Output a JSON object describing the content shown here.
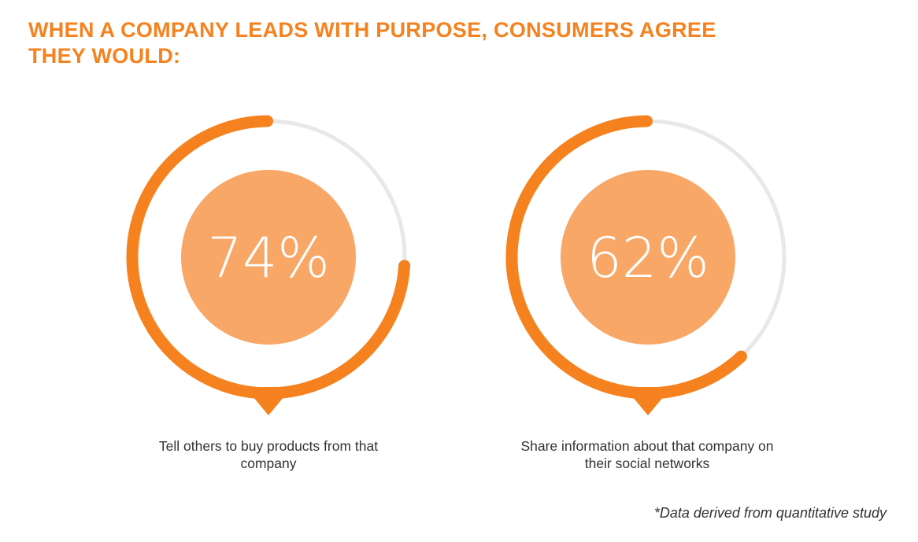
{
  "title": "WHEN A COMPANY LEADS WITH PURPOSE, CONSUMERS AGREE THEY WOULD:",
  "footnote": "*Data derived from quantitative study",
  "colors": {
    "accent": "#F5821F",
    "inner_circle": "#F8A766",
    "track": "#E8E8E8",
    "value_text": "#FFFFFF",
    "label_text": "#333333"
  },
  "chart_data": {
    "type": "pie",
    "items": [
      {
        "value": 74,
        "display": "74%",
        "label": "Tell others to buy products from that company"
      },
      {
        "value": 62,
        "display": "62%",
        "label": "Share information about that company on their social networks"
      }
    ]
  }
}
